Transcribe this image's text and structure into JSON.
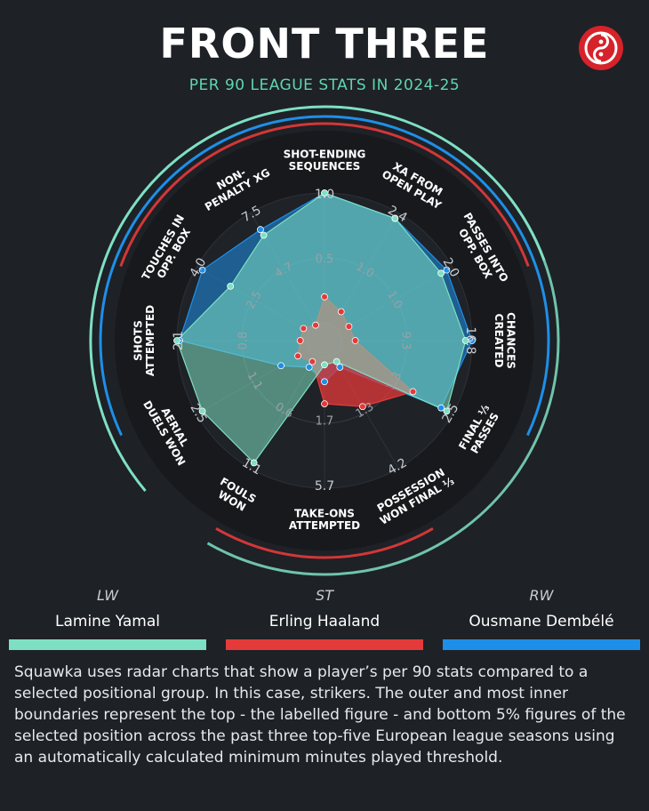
{
  "header": {
    "title": "FRONT THREE",
    "subtitle": "PER 90 LEAGUE STATS IN 2024-25"
  },
  "logo": {
    "icon": "squawka-logo-icon",
    "color": "#d6222a"
  },
  "players": [
    {
      "position": "LW",
      "name": "Lamine Yamal",
      "color": "#7ee0c3"
    },
    {
      "position": "ST",
      "name": "Erling Haaland",
      "color": "#e53a3a"
    },
    {
      "position": "RW",
      "name": "Ousmane Dembélé",
      "color": "#1e8fe8"
    }
  ],
  "description": "Squawka uses radar charts that show a player’s per 90 stats compared to a selected positional group. In this case, strikers. The outer and most inner boundaries represent the top - the labelled figure - and bottom 5% figures of the selected position across the past three top-five European league seasons using an automatically calculated minimum minutes played threshold.",
  "chart_data": {
    "type": "radar",
    "title": "FRONT THREE",
    "subtitle": "PER 90 LEAGUE STATS IN 2024-25",
    "axes": [
      {
        "label": [
          "SHOT-ENDING",
          "SEQUENCES"
        ],
        "max": "1.0",
        "mid": "0.5"
      },
      {
        "label": [
          "XA FROM",
          "OPEN PLAY"
        ],
        "max": "2.4",
        "mid": "1.0"
      },
      {
        "label": [
          "PASSES INTO",
          "OPP. BOX"
        ],
        "max": "2.0",
        "mid": "1.0"
      },
      {
        "label": [
          "CHANCES",
          "CREATED"
        ],
        "max": "16.8",
        "mid": "9.3"
      },
      {
        "label": [
          "FINAL ⅓",
          "PASSES"
        ],
        "max": "2.5",
        "mid": "1.3"
      },
      {
        "label": [
          "POSSESSION",
          "WON FINAL ⅓"
        ],
        "max": "4.2",
        "mid": "1.3"
      },
      {
        "label": [
          "TAKE-ONS",
          "ATTEMPTED"
        ],
        "max": "5.7",
        "mid": "1.7"
      },
      {
        "label": [
          "FOULS",
          "WON"
        ],
        "max": "1.1",
        "mid": "0.6"
      },
      {
        "label": [
          "AERIAL",
          "DUELS WON"
        ],
        "max": "2.5",
        "mid": "1.1"
      },
      {
        "label": [
          "SHOTS",
          "ATTEMPTED"
        ],
        "max": "2.1",
        "mid": "0.8"
      },
      {
        "label": [
          "TOUCHES IN",
          "OPP. BOX"
        ],
        "max": "4.0",
        "mid": "2.5"
      },
      {
        "label": [
          "NON-",
          "PENALTY XG"
        ],
        "max": "7.5",
        "mid": "4.7"
      }
    ],
    "series": [
      {
        "name": "Lamine Yamal",
        "position": "LW",
        "values": [
          1.0,
          0.95,
          0.9,
          0.95,
          0.95,
          0.05,
          0.05,
          0.95,
          0.95,
          1.0,
          0.7,
          0.8
        ]
      },
      {
        "name": "Erling Haaland",
        "position": "ST",
        "values": [
          0.2,
          0.12,
          0.08,
          0.1,
          0.65,
          0.45,
          0.35,
          0.05,
          0.1,
          0.05,
          0.05,
          0.0
        ]
      },
      {
        "name": "Ousmane Dembélé",
        "position": "RW",
        "values": [
          1.0,
          0.95,
          0.95,
          1.0,
          0.9,
          0.1,
          0.18,
          0.1,
          0.25,
          0.98,
          0.95,
          0.85
        ]
      }
    ]
  }
}
